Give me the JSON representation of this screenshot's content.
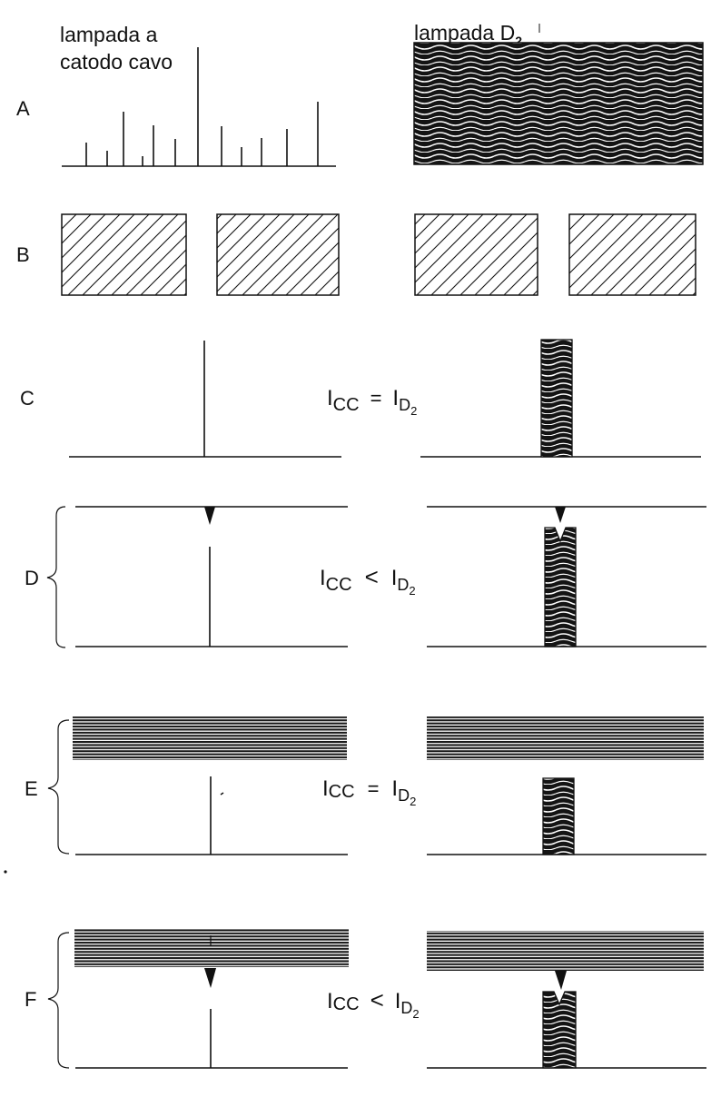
{
  "headers": {
    "left_line1": "lampada a",
    "left_line2": "catodo cavo",
    "right_main": "lampada D",
    "right_sub": "2"
  },
  "rows": [
    {
      "label": "A",
      "relation": null
    },
    {
      "label": "B",
      "relation": null
    },
    {
      "label": "C",
      "relation": {
        "lhs_main": "I",
        "lhs_sub": "CC",
        "op": "=",
        "rhs_main": "I",
        "rhs_sub": "D",
        "rhs_subsub": "2"
      }
    },
    {
      "label": "D",
      "relation": {
        "lhs_main": "I",
        "lhs_sub": "CC",
        "op": "<",
        "rhs_main": "I",
        "rhs_sub": "D",
        "rhs_subsub": "2"
      }
    },
    {
      "label": "E",
      "relation": {
        "lhs_main": "I",
        "lhs_sub": "CC",
        "op": "=",
        "rhs_main": "I",
        "rhs_sub": "D",
        "rhs_subsub": "2"
      }
    },
    {
      "label": "F",
      "relation": {
        "lhs_main": "I",
        "lhs_sub": "CC",
        "op": "<",
        "rhs_main": "I",
        "rhs_sub": "D",
        "rhs_subsub": "2"
      }
    }
  ],
  "colors": {
    "ink": "#111111",
    "paper": "#ffffff"
  }
}
